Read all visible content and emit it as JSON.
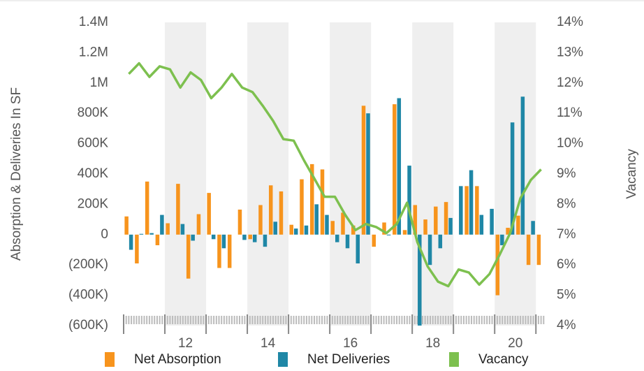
{
  "chart_data": {
    "type": "bar",
    "y_label": "Absorption & Deliveries In SF",
    "y2_label": "Vacancy",
    "x": [
      11,
      11.25,
      11.5,
      11.75,
      12,
      12.25,
      12.5,
      12.75,
      13,
      13.25,
      13.5,
      13.75,
      14,
      14.25,
      14.5,
      14.75,
      15,
      15.25,
      15.5,
      15.75,
      16,
      16.25,
      16.5,
      16.75,
      17,
      17.25,
      17.5,
      17.75,
      18,
      18.25,
      18.5,
      18.75,
      19,
      19.25,
      19.5,
      19.75,
      20,
      20.25,
      20.5,
      20.75,
      21
    ],
    "xlim": [
      11,
      21.25
    ],
    "xticks": [
      {
        "value": 12.5,
        "label": "12"
      },
      {
        "value": 14.5,
        "label": "14"
      },
      {
        "value": 16.5,
        "label": "16"
      },
      {
        "value": 18.5,
        "label": "18"
      },
      {
        "value": 20.5,
        "label": "20"
      }
    ],
    "ylim": [
      -600000,
      1400000
    ],
    "yticks": [
      {
        "value": -600000,
        "label": "(600K)"
      },
      {
        "value": -400000,
        "label": "(400K)"
      },
      {
        "value": -200000,
        "label": "(200K)"
      },
      0,
      {
        "value": 200000,
        "label": "200K"
      },
      {
        "value": 400000,
        "label": "400K"
      },
      {
        "value": 600000,
        "label": "600K"
      },
      {
        "value": 800000,
        "label": "800K"
      },
      {
        "value": 1000000,
        "label": "1M"
      },
      {
        "value": 1200000,
        "label": "1.2M"
      },
      {
        "value": 1400000,
        "label": "1.4M"
      }
    ],
    "y2lim": [
      4,
      14
    ],
    "y2ticks": [
      {
        "value": 4,
        "label": "4%"
      },
      {
        "value": 5,
        "label": "5%"
      },
      {
        "value": 6,
        "label": "6%"
      },
      {
        "value": 7,
        "label": "7%"
      },
      {
        "value": 8,
        "label": "8%"
      },
      {
        "value": 9,
        "label": "9%"
      },
      {
        "value": 10,
        "label": "10%"
      },
      {
        "value": 11,
        "label": "11%"
      },
      {
        "value": 12,
        "label": "12%"
      },
      {
        "value": 13,
        "label": "13%"
      },
      {
        "value": 14,
        "label": "14%"
      }
    ],
    "series": [
      {
        "name": "Net Absorption",
        "color": "#f7941d",
        "values": [
          120000,
          -190000,
          350000,
          -70000,
          75000,
          335000,
          -290000,
          135000,
          275000,
          -220000,
          -220000,
          165000,
          -30000,
          195000,
          325000,
          285000,
          65000,
          365000,
          465000,
          430000,
          90000,
          145000,
          60000,
          850000,
          -80000,
          80000,
          860000,
          30000,
          195000,
          100000,
          185000,
          215000,
          0,
          320000,
          320000,
          0,
          -400000,
          45000,
          125000,
          -200000,
          -200000
        ]
      },
      {
        "name": "Net Deliveries",
        "color": "#1f87a6",
        "values": [
          -100000,
          5000,
          10000,
          130000,
          0,
          70000,
          -40000,
          0,
          -30000,
          -90000,
          0,
          -35000,
          -50000,
          -80000,
          85000,
          0,
          40000,
          60000,
          200000,
          130000,
          -50000,
          -90000,
          -190000,
          800000,
          0,
          -5000,
          900000,
          455000,
          -600000,
          -200000,
          -90000,
          110000,
          320000,
          425000,
          130000,
          170000,
          -70000,
          740000,
          910000,
          90000,
          0
        ]
      },
      {
        "name": "Vacancy",
        "color": "#7dc04f",
        "type": "line",
        "axis": "y2",
        "values": [
          12.3,
          12.65,
          12.2,
          12.55,
          12.45,
          11.85,
          12.35,
          12.1,
          11.5,
          11.85,
          12.3,
          11.85,
          11.7,
          11.25,
          10.75,
          10.15,
          10.1,
          9.45,
          8.85,
          8.25,
          8.25,
          7.65,
          7.15,
          7.35,
          7.25,
          7.05,
          7.35,
          8.05,
          6.75,
          5.95,
          5.45,
          5.3,
          5.85,
          5.75,
          5.35,
          5.7,
          6.35,
          7.05,
          8.2,
          8.8,
          9.15
        ]
      }
    ]
  }
}
